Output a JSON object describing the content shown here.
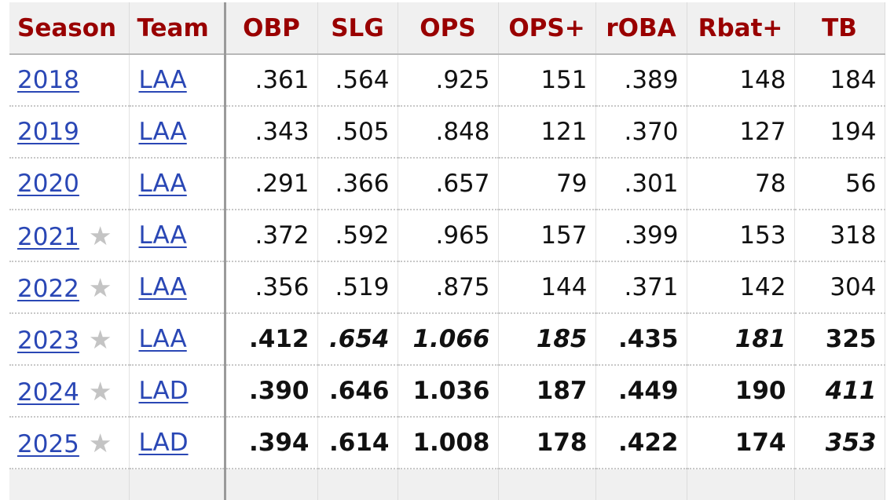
{
  "columns": [
    "Season",
    "Team",
    "OBP",
    "SLG",
    "OPS",
    "OPS+",
    "rOBA",
    "Rbat+",
    "TB"
  ],
  "rows": [
    {
      "season": "2018",
      "star": false,
      "team": "LAA",
      "obp": ".361",
      "slg": ".564",
      "ops": ".925",
      "ops_plus": "151",
      "roba": ".389",
      "rbat_plus": "148",
      "tb": "184"
    },
    {
      "season": "2019",
      "star": false,
      "team": "LAA",
      "obp": ".343",
      "slg": ".505",
      "ops": ".848",
      "ops_plus": "121",
      "roba": ".370",
      "rbat_plus": "127",
      "tb": "194"
    },
    {
      "season": "2020",
      "star": false,
      "team": "LAA",
      "obp": ".291",
      "slg": ".366",
      "ops": ".657",
      "ops_plus": "79",
      "roba": ".301",
      "rbat_plus": "78",
      "tb": "56"
    },
    {
      "season": "2021",
      "star": true,
      "team": "LAA",
      "obp": ".372",
      "slg": ".592",
      "ops": ".965",
      "ops_plus": "157",
      "roba": ".399",
      "rbat_plus": "153",
      "tb": "318"
    },
    {
      "season": "2022",
      "star": true,
      "team": "LAA",
      "obp": ".356",
      "slg": ".519",
      "ops": ".875",
      "ops_plus": "144",
      "roba": ".371",
      "rbat_plus": "142",
      "tb": "304"
    },
    {
      "season": "2023",
      "star": true,
      "team": "LAA",
      "obp": ".412",
      "slg": ".654",
      "ops": "1.066",
      "ops_plus": "185",
      "roba": ".435",
      "rbat_plus": "181",
      "tb": "325"
    },
    {
      "season": "2024",
      "star": true,
      "team": "LAD",
      "obp": ".390",
      "slg": ".646",
      "ops": "1.036",
      "ops_plus": "187",
      "roba": ".449",
      "rbat_plus": "190",
      "tb": "411"
    },
    {
      "season": "2025",
      "star": true,
      "team": "LAD",
      "obp": ".394",
      "slg": ".614",
      "ops": "1.008",
      "ops_plus": "178",
      "roba": ".422",
      "rbat_plus": "174",
      "tb": "353"
    }
  ],
  "star_glyph": "★",
  "colors": {
    "header_text": "#990000",
    "link": "#2a47b5",
    "header_bg": "#f0f0f0",
    "star": "#c4c4c4"
  }
}
